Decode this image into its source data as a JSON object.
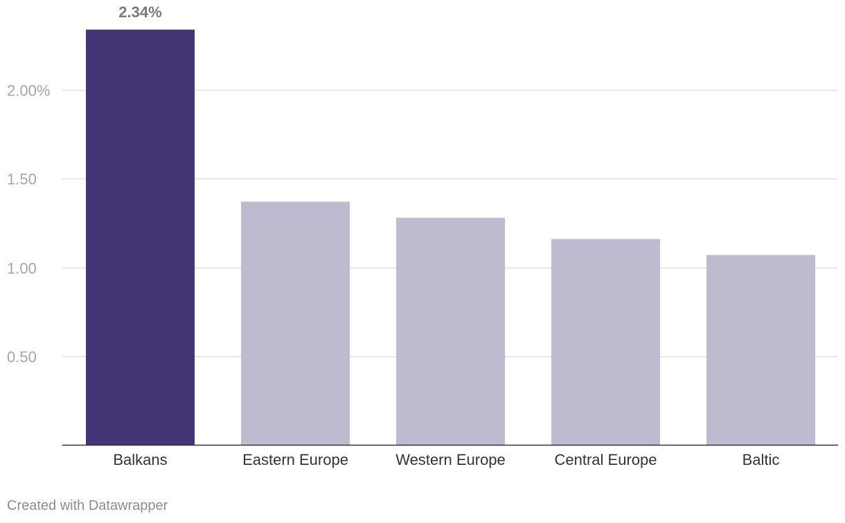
{
  "chart_data": {
    "type": "bar",
    "title": "",
    "xlabel": "",
    "ylabel": "",
    "categories": [
      "Balkans",
      "Eastern Europe",
      "Western Europe",
      "Central Europe",
      "Baltic"
    ],
    "values": [
      2.34,
      1.37,
      1.28,
      1.16,
      1.07
    ],
    "highlighted": [
      "Balkans"
    ],
    "value_labels": [
      {
        "category": "Balkans",
        "text": "2.34%"
      }
    ],
    "yticks": [
      {
        "value": 0.5,
        "label": "0.50"
      },
      {
        "value": 1.0,
        "label": "1.00"
      },
      {
        "value": 1.5,
        "label": "1.50"
      },
      {
        "value": 2.0,
        "label": "2.00%"
      }
    ],
    "ylim": [
      0,
      2.34
    ],
    "grid": true,
    "colors": {
      "highlight": "#433576",
      "default": "#bebacf",
      "grid": "#e0e0e0",
      "axis": "#333333"
    }
  },
  "footer": {
    "credit": "Created with Datawrapper"
  }
}
